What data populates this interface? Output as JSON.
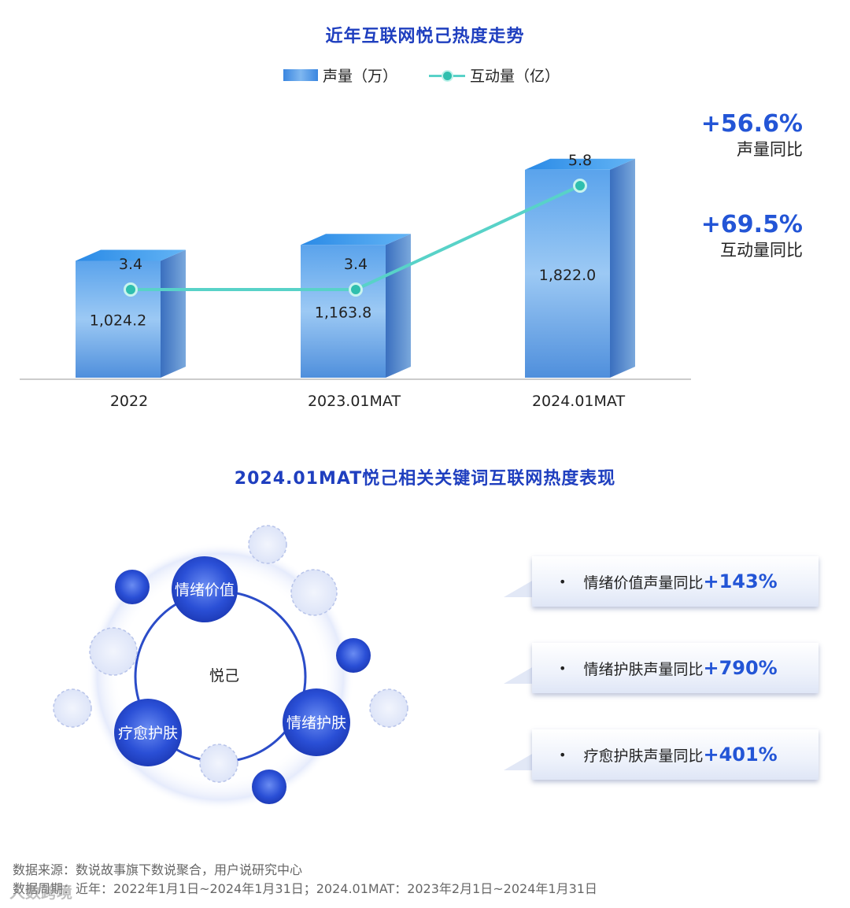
{
  "chart_data": [
    {
      "type": "bar",
      "title": "近年互联网悦己热度走势",
      "categories": [
        "2022",
        "2023.01MAT",
        "2024.01MAT"
      ],
      "series": [
        {
          "name": "声量（万）",
          "type": "bar",
          "values": [
            1024.2,
            1163.8,
            1822.0
          ],
          "labels": [
            "1,024.2",
            "1,163.8",
            "1,822.0"
          ],
          "color": "#4a93e6"
        },
        {
          "name": "互动量（亿）",
          "type": "line",
          "values": [
            3.4,
            3.4,
            5.8
          ],
          "labels": [
            "3.4",
            "3.4",
            "5.8"
          ],
          "color": "#58d2c8"
        }
      ],
      "legend": "top-center"
    }
  ],
  "yoy": [
    {
      "value": "+56.6%",
      "label": "声量同比"
    },
    {
      "value": "+69.5%",
      "label": "互动量同比"
    }
  ],
  "section2": {
    "title": "2024.01MAT悦己相关关键词互联网热度表现",
    "center_label": "悦己",
    "keywords": [
      "情绪价值",
      "疗愈护肤",
      "情绪护肤"
    ]
  },
  "callouts": [
    {
      "bullet": "•",
      "text": "情绪价值声量同比",
      "pct": "+143%"
    },
    {
      "bullet": "•",
      "text": "情绪护肤声量同比",
      "pct": "+790%"
    },
    {
      "bullet": "•",
      "text": "疗愈护肤声量同比",
      "pct": "+401%"
    }
  ],
  "footer": {
    "source": "数据来源：数说故事旗下数说聚合，用户说研究中心",
    "period": "数据周期：近年：2022年1月1日~2024年1月31日；2024.01MAT：2023年2月1日~2024年1月31日"
  },
  "watermark": "人数跨境",
  "colors": {
    "title": "#1f3fbf",
    "accent": "#2355d6",
    "bar": "#4a93e6",
    "line": "#58d2c8"
  }
}
